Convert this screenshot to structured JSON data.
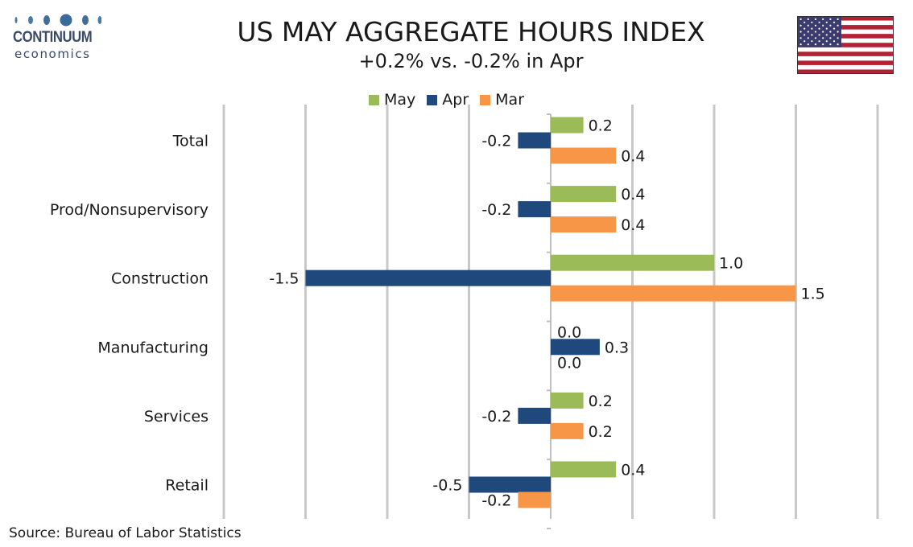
{
  "header": {
    "title": "US MAY AGGREGATE HOURS INDEX",
    "subtitle": "+0.2% vs. -0.2% in Apr"
  },
  "logo": {
    "word1": "CONTINUUM",
    "word2": "economics"
  },
  "flag": {
    "icon": "us-flag-icon"
  },
  "footer": {
    "source": "Source: Bureau of Labor Statistics"
  },
  "chart_data": {
    "type": "bar",
    "orientation": "horizontal",
    "title": "US MAY AGGREGATE HOURS INDEX",
    "subtitle": "+0.2% vs. -0.2% in Apr",
    "categories": [
      "Total",
      "Prod/Nonsupervisory",
      "Construction",
      "Manufacturing",
      "Services",
      "Retail"
    ],
    "series": [
      {
        "name": "May",
        "color": "#9bbb59",
        "values": [
          0.2,
          0.4,
          1.0,
          0.0,
          0.2,
          0.4
        ],
        "labels": [
          "0.2",
          "0.4",
          "1.0",
          "0.0",
          "0.2",
          "0.4"
        ]
      },
      {
        "name": "Apr",
        "color": "#1f497d",
        "values": [
          -0.2,
          -0.2,
          -1.5,
          0.3,
          -0.2,
          -0.5
        ],
        "labels": [
          "-0.2",
          "-0.2",
          "-1.5",
          "0.3",
          "-0.2",
          "-0.5"
        ]
      },
      {
        "name": "Mar",
        "color": "#f79646",
        "values": [
          0.4,
          0.4,
          1.5,
          0.0,
          0.2,
          -0.2
        ],
        "labels": [
          "0.4",
          "0.4",
          "1.5",
          "0.0",
          "0.2",
          "-0.2"
        ]
      }
    ],
    "xlim": [
      -2.0,
      2.0
    ],
    "grid": true,
    "legend_position": "top-center"
  }
}
